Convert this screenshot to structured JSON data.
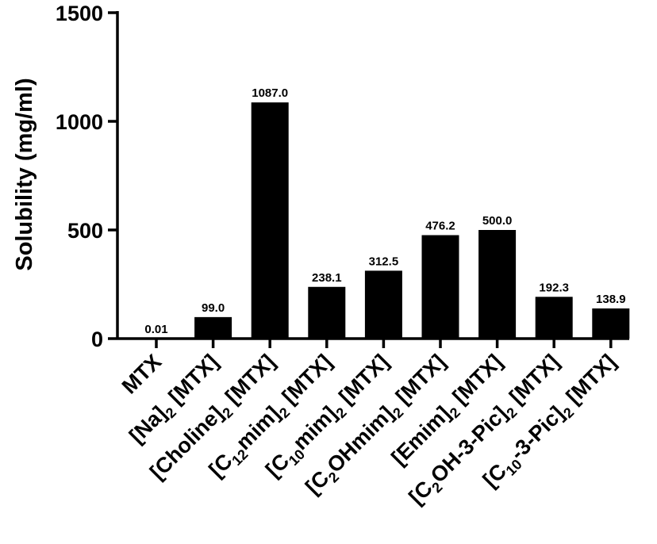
{
  "chart_data": {
    "type": "bar",
    "ylabel": "Solubility (mg/ml)",
    "xlabel": "",
    "ylim": [
      0,
      1500
    ],
    "yticks": [
      0,
      500,
      1000,
      1500
    ],
    "grid": false,
    "legend": "none",
    "bar_color": "#000000",
    "categories": [
      "MTX",
      "[Na]2 [MTX]",
      "[Choline]2 [MTX]",
      "[C12mim]2 [MTX]",
      "[C10mim]2 [MTX]",
      "[C2OHmim]2 [MTX]",
      "[Emim]2 [MTX]",
      "[C2OH-3-Pic]2 [MTX]",
      "[C10-3-Pic]2 [MTX]"
    ],
    "category_parts": [
      [
        [
          "MTX",
          false
        ]
      ],
      [
        [
          "[Na]",
          false
        ],
        [
          "2",
          true
        ],
        [
          " [MTX]",
          false
        ]
      ],
      [
        [
          "[Choline]",
          false
        ],
        [
          "2",
          true
        ],
        [
          " [MTX]",
          false
        ]
      ],
      [
        [
          "[C",
          false
        ],
        [
          "12",
          true
        ],
        [
          "mim]",
          false
        ],
        [
          "2",
          true
        ],
        [
          " [MTX]",
          false
        ]
      ],
      [
        [
          "[C",
          false
        ],
        [
          "10",
          true
        ],
        [
          "mim]",
          false
        ],
        [
          "2",
          true
        ],
        [
          " [MTX]",
          false
        ]
      ],
      [
        [
          "[C",
          false
        ],
        [
          "2",
          true
        ],
        [
          "OHmim]",
          false
        ],
        [
          "2",
          true
        ],
        [
          " [MTX]",
          false
        ]
      ],
      [
        [
          "[Emim]",
          false
        ],
        [
          "2",
          true
        ],
        [
          " [MTX]",
          false
        ]
      ],
      [
        [
          "[C",
          false
        ],
        [
          "2",
          true
        ],
        [
          "OH-3-Pic]",
          false
        ],
        [
          "2",
          true
        ],
        [
          " [MTX]",
          false
        ]
      ],
      [
        [
          "[C",
          false
        ],
        [
          "10",
          true
        ],
        [
          "-3-Pic]",
          false
        ],
        [
          "2",
          true
        ],
        [
          " [MTX]",
          false
        ]
      ]
    ],
    "values": [
      0.01,
      99.0,
      1087.0,
      238.1,
      312.5,
      476.2,
      500.0,
      192.3,
      138.9
    ],
    "value_labels": [
      "0.01",
      "99.0",
      "1087.0",
      "238.1",
      "312.5",
      "476.2",
      "500.0",
      "192.3",
      "138.9"
    ]
  }
}
